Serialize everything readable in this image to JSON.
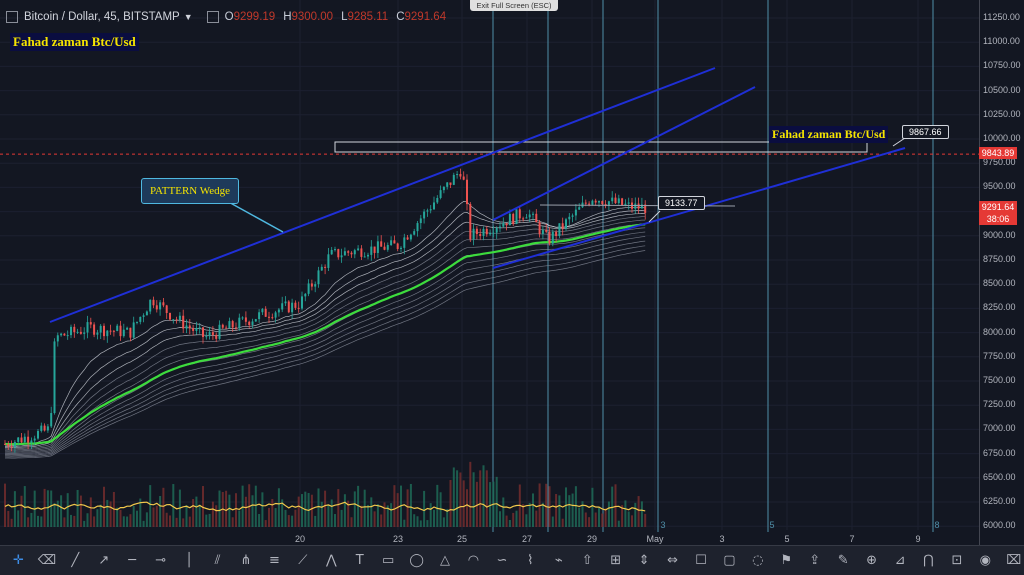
{
  "header": {
    "symbol": "Bitcoin / Dollar, 45, BITSTAMP",
    "open_label": "O",
    "open": "9299.19",
    "high_label": "H",
    "high": "9300.00",
    "low_label": "L",
    "low": "9285.11",
    "close_label": "C",
    "close": "9291.64"
  },
  "overlay": {
    "exit_fullscreen": "Exit Full Screen (ESC)"
  },
  "annotations": {
    "author_top": "Fahad zaman Btc/Usd",
    "author_right": "Fahad zaman Btc/Usd",
    "pattern": "PATTERN Wedge",
    "callout_upper": "9867.66",
    "callout_lower": "9133.77"
  },
  "price_axis": {
    "ticks": [
      "11250.00",
      "11000.00",
      "10750.00",
      "10500.00",
      "10250.00",
      "10000.00",
      "9750.00",
      "9500.00",
      "9250.00",
      "9000.00",
      "8750.00",
      "8500.00",
      "8250.00",
      "8000.00",
      "7750.00",
      "7500.00",
      "7250.00",
      "7000.00",
      "6750.00",
      "6500.00",
      "6250.00",
      "6000.00"
    ],
    "resistance_label": "9843.89",
    "last_price_label": "9291.64",
    "countdown_label": "38:06"
  },
  "time_axis": {
    "labels": [
      "20",
      "23",
      "25",
      "27",
      "29",
      "May",
      "3",
      "5",
      "7",
      "9"
    ],
    "cycle_labels": [
      "3",
      "5",
      "8"
    ]
  },
  "colors": {
    "background": "#131722",
    "up": "#26a69a",
    "down": "#ef5350",
    "trendline": "#1f2fd6",
    "ma_green": "#3ddc3d",
    "resistance": "#e53935",
    "cycle_line": "#4f8fa8"
  },
  "chart_data": {
    "type": "candlestick",
    "symbol": "BTC/USD",
    "x_labels": [
      "20",
      "23",
      "25",
      "27",
      "29",
      "May",
      "3",
      "5",
      "7",
      "9"
    ],
    "ylim": [
      6000,
      11250
    ],
    "close_path": [
      {
        "x": "Apr 11",
        "y": 6850
      },
      {
        "x": "Apr 12",
        "y": 7000
      },
      {
        "x": "Apr 12",
        "y": 7950
      },
      {
        "x": "Apr 13",
        "y": 8050
      },
      {
        "x": "Apr 14",
        "y": 8000
      },
      {
        "x": "Apr 15",
        "y": 8350
      },
      {
        "x": "Apr 16",
        "y": 8150
      },
      {
        "x": "Apr 17",
        "y": 7950
      },
      {
        "x": "Apr 18",
        "y": 8100
      },
      {
        "x": "Apr 19",
        "y": 8200
      },
      {
        "x": "Apr 20",
        "y": 8300
      },
      {
        "x": "Apr 21",
        "y": 8800
      },
      {
        "x": "Apr 22",
        "y": 8850
      },
      {
        "x": "Apr 23",
        "y": 8900
      },
      {
        "x": "Apr 24",
        "y": 9300
      },
      {
        "x": "Apr 25",
        "y": 9700
      },
      {
        "x": "Apr 25",
        "y": 9000
      },
      {
        "x": "Apr 26",
        "y": 9100
      },
      {
        "x": "Apr 27",
        "y": 9250
      },
      {
        "x": "Apr 28",
        "y": 8950
      },
      {
        "x": "Apr 29",
        "y": 9400
      },
      {
        "x": "Apr 30",
        "y": 9300
      },
      {
        "x": "May 1",
        "y": 9291.64
      }
    ],
    "resistance_level": 9843.89,
    "annotated_prices": [
      9867.66,
      9133.77
    ],
    "last_price": 9291.64,
    "ohlc_last": {
      "open": 9299.19,
      "high": 9300.0,
      "low": 9285.11,
      "close": 9291.64
    }
  }
}
